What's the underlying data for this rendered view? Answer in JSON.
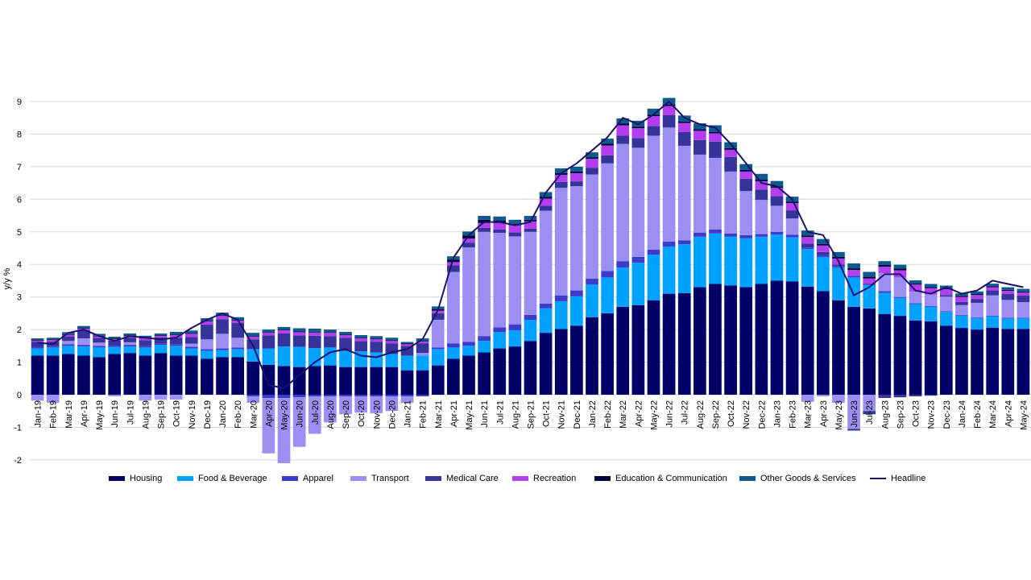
{
  "chart_data": {
    "type": "bar",
    "stacked": true,
    "title": "",
    "xlabel": "",
    "ylabel": "y/y %",
    "ylim": [
      -2,
      9
    ],
    "yticks": [
      -2,
      -1,
      0,
      1,
      2,
      3,
      4,
      5,
      6,
      7,
      8,
      9
    ],
    "grid": true,
    "legend_position": "bottom",
    "categories": [
      "Jan-19",
      "Feb-19",
      "Mar-19",
      "Apr-19",
      "May-19",
      "Jun-19",
      "Jul-19",
      "Aug-19",
      "Sep-19",
      "Oct-19",
      "Nov-19",
      "Dec-19",
      "Jan-20",
      "Feb-20",
      "Mar-20",
      "Apr-20",
      "May-20",
      "Jun-20",
      "Jul-20",
      "Aug-20",
      "Sep-20",
      "Oct-20",
      "Nov-20",
      "Dec-20",
      "Jan-21",
      "Feb-21",
      "Mar-21",
      "Apr-21",
      "May-21",
      "Jun-21",
      "Jul-21",
      "Aug-21",
      "Sep-21",
      "Oct-21",
      "Nov-21",
      "Dec-21",
      "Jan-22",
      "Feb-22",
      "Mar-22",
      "Apr-22",
      "May-22",
      "Jun-22",
      "Jul-22",
      "Aug-22",
      "Sep-22",
      "Oct-22",
      "Nov-22",
      "Dec-22",
      "Jan-23",
      "Feb-23",
      "Mar-23",
      "Apr-23",
      "May-23",
      "Jun-23",
      "Jul-23",
      "Aug-23",
      "Sep-23",
      "Oct-23",
      "Nov-23",
      "Dec-23",
      "Jan-24",
      "Feb-24",
      "Mar-24",
      "Apr-24",
      "May-24"
    ],
    "series": [
      {
        "name": "Housing",
        "color": "#000066",
        "values": [
          1.2,
          1.2,
          1.25,
          1.2,
          1.15,
          1.25,
          1.28,
          1.2,
          1.28,
          1.2,
          1.2,
          1.1,
          1.15,
          1.15,
          1.02,
          0.92,
          0.88,
          0.85,
          0.88,
          0.9,
          0.85,
          0.85,
          0.85,
          0.85,
          0.75,
          0.75,
          0.9,
          1.1,
          1.2,
          1.3,
          1.42,
          1.48,
          1.65,
          1.9,
          2.02,
          2.12,
          2.38,
          2.5,
          2.7,
          2.75,
          2.9,
          3.1,
          3.12,
          3.3,
          3.4,
          3.35,
          3.3,
          3.4,
          3.5,
          3.48,
          3.32,
          3.18,
          2.9,
          2.7,
          2.65,
          2.48,
          2.42,
          2.28,
          2.25,
          2.12,
          2.05,
          2.0,
          2.06,
          2.02,
          2.02
        ]
      },
      {
        "name": "Food & Beverage",
        "color": "#00a2ff",
        "values": [
          0.22,
          0.25,
          0.25,
          0.28,
          0.3,
          0.22,
          0.2,
          0.25,
          0.25,
          0.3,
          0.22,
          0.25,
          0.22,
          0.25,
          0.38,
          0.5,
          0.6,
          0.62,
          0.55,
          0.55,
          0.5,
          0.48,
          0.45,
          0.4,
          0.45,
          0.45,
          0.5,
          0.35,
          0.3,
          0.35,
          0.5,
          0.5,
          0.65,
          0.75,
          0.85,
          0.9,
          1.0,
          1.1,
          1.2,
          1.3,
          1.4,
          1.45,
          1.5,
          1.55,
          1.55,
          1.5,
          1.5,
          1.45,
          1.42,
          1.35,
          1.15,
          1.05,
          1.0,
          0.9,
          0.72,
          0.65,
          0.55,
          0.5,
          0.45,
          0.42,
          0.38,
          0.35,
          0.35,
          0.32,
          0.32
        ]
      },
      {
        "name": "Apparel",
        "color": "#3b3bcc",
        "values": [
          0.05,
          0.05,
          0.05,
          0.05,
          0.05,
          0.05,
          0.05,
          0.05,
          0.05,
          0.05,
          0.05,
          0.05,
          0.05,
          0.05,
          -0.05,
          -0.1,
          -0.1,
          -0.08,
          -0.05,
          -0.05,
          -0.05,
          -0.05,
          -0.05,
          -0.05,
          -0.05,
          -0.05,
          0.05,
          0.12,
          0.12,
          0.15,
          0.15,
          0.18,
          0.15,
          0.15,
          0.18,
          0.18,
          0.18,
          0.2,
          0.2,
          0.18,
          0.15,
          0.15,
          0.12,
          0.12,
          0.12,
          0.1,
          0.1,
          0.08,
          0.08,
          0.08,
          0.05,
          0.05,
          0.05,
          0.05,
          0.05,
          0.05,
          0.03,
          0.03,
          0.02,
          0.02,
          0.02,
          0.02,
          0.02,
          0.02,
          0.02
        ]
      },
      {
        "name": "Transport",
        "color": "#9b8ff2",
        "values": [
          -0.18,
          -0.25,
          0.1,
          0.2,
          0.1,
          -0.05,
          0.08,
          -0.18,
          -0.15,
          -0.15,
          0.1,
          0.3,
          0.45,
          0.3,
          -0.2,
          -1.7,
          -2.0,
          -1.52,
          -1.15,
          -0.8,
          -0.55,
          -0.5,
          -0.52,
          -0.45,
          -0.2,
          0.08,
          0.85,
          2.2,
          2.9,
          3.2,
          2.9,
          2.7,
          2.55,
          2.85,
          3.3,
          3.2,
          3.2,
          3.3,
          3.6,
          3.35,
          3.5,
          3.5,
          2.9,
          2.4,
          2.2,
          1.9,
          1.35,
          1.05,
          0.8,
          0.5,
          -0.22,
          -0.05,
          -0.25,
          -1.05,
          -0.5,
          0.55,
          0.6,
          0.35,
          0.35,
          0.45,
          0.3,
          0.45,
          0.62,
          0.55,
          0.48
        ]
      },
      {
        "name": "Medical Care",
        "color": "#36349a",
        "values": [
          0.15,
          0.13,
          0.14,
          0.25,
          0.14,
          0.14,
          0.14,
          0.17,
          0.18,
          0.2,
          0.2,
          0.45,
          0.45,
          0.45,
          0.3,
          0.4,
          0.4,
          0.35,
          0.38,
          0.35,
          0.4,
          0.32,
          0.32,
          0.32,
          0.3,
          0.3,
          0.2,
          0.2,
          0.15,
          0.12,
          0.1,
          0.12,
          0.1,
          0.15,
          0.18,
          0.15,
          0.2,
          0.25,
          0.25,
          0.3,
          0.3,
          0.38,
          0.42,
          0.45,
          0.5,
          0.45,
          0.38,
          0.32,
          0.3,
          0.25,
          0.12,
          0.1,
          0.05,
          -0.05,
          -0.1,
          -0.1,
          -0.08,
          -0.05,
          -0.03,
          0.05,
          0.1,
          0.12,
          0.15,
          0.18,
          0.2
        ]
      },
      {
        "name": "Recreation",
        "color": "#b23ef0",
        "values": [
          0.04,
          0.05,
          0.05,
          0.05,
          0.05,
          0.05,
          0.05,
          0.06,
          0.05,
          0.08,
          0.1,
          0.1,
          0.1,
          0.08,
          0.08,
          0.08,
          0.1,
          0.1,
          0.1,
          0.1,
          0.08,
          0.08,
          0.08,
          0.08,
          0.05,
          0.05,
          0.08,
          0.1,
          0.12,
          0.15,
          0.2,
          0.22,
          0.22,
          0.22,
          0.22,
          0.25,
          0.28,
          0.3,
          0.32,
          0.3,
          0.3,
          0.28,
          0.28,
          0.28,
          0.25,
          0.22,
          0.22,
          0.25,
          0.25,
          0.22,
          0.2,
          0.2,
          0.18,
          0.18,
          0.15,
          0.2,
          0.22,
          0.22,
          0.2,
          0.18,
          0.15,
          0.12,
          0.1,
          0.1,
          0.1
        ]
      },
      {
        "name": "Education & Communication",
        "color": "#00003a",
        "values": [
          0.02,
          0.02,
          0.02,
          0.02,
          0.02,
          0.02,
          0.02,
          0.02,
          0.02,
          0.02,
          0.02,
          0.02,
          0.02,
          0.02,
          0.02,
          0.02,
          0.02,
          0.02,
          0.02,
          0.02,
          0.02,
          0.02,
          0.02,
          0.02,
          0.02,
          0.02,
          0.05,
          0.08,
          0.1,
          0.1,
          0.08,
          0.05,
          0.05,
          0.05,
          0.05,
          0.05,
          0.05,
          0.06,
          0.05,
          0.05,
          0.05,
          0.05,
          0.05,
          0.05,
          0.05,
          0.05,
          0.05,
          0.05,
          0.05,
          0.05,
          0.05,
          0.05,
          0.05,
          0.05,
          0.05,
          0.05,
          0.05,
          0.03,
          0.03,
          0.03,
          0.03,
          0.03,
          0.03,
          0.03,
          0.03
        ]
      },
      {
        "name": "Other Goods & Services",
        "color": "#0f5a8c",
        "values": [
          0.05,
          0.05,
          0.06,
          0.06,
          0.06,
          0.05,
          0.06,
          0.06,
          0.05,
          0.08,
          0.08,
          0.08,
          0.08,
          0.08,
          0.1,
          0.08,
          0.08,
          0.1,
          0.1,
          0.08,
          0.08,
          0.08,
          0.08,
          0.08,
          0.05,
          0.08,
          0.08,
          0.1,
          0.12,
          0.12,
          0.12,
          0.12,
          0.12,
          0.15,
          0.15,
          0.15,
          0.15,
          0.15,
          0.16,
          0.18,
          0.18,
          0.2,
          0.18,
          0.18,
          0.2,
          0.18,
          0.18,
          0.18,
          0.16,
          0.15,
          0.15,
          0.15,
          0.15,
          0.15,
          0.15,
          0.12,
          0.12,
          0.1,
          0.1,
          0.08,
          0.08,
          0.08,
          0.08,
          0.08,
          0.08
        ]
      },
      {
        "name": "Headline",
        "color": "#1a126e",
        "type": "line",
        "values": [
          1.6,
          1.55,
          1.9,
          2.0,
          1.8,
          1.65,
          1.8,
          1.75,
          1.7,
          1.75,
          2.05,
          2.3,
          2.5,
          2.3,
          1.5,
          0.3,
          0.2,
          0.6,
          1.0,
          1.3,
          1.4,
          1.2,
          1.15,
          1.3,
          1.4,
          1.7,
          2.6,
          4.2,
          4.9,
          5.3,
          5.3,
          5.2,
          5.3,
          6.2,
          6.8,
          7.1,
          7.5,
          7.9,
          8.5,
          8.3,
          8.6,
          9.0,
          8.5,
          8.3,
          8.2,
          7.7,
          7.1,
          6.5,
          6.4,
          6.0,
          5.0,
          4.9,
          4.1,
          3.05,
          3.3,
          3.7,
          3.7,
          3.2,
          3.1,
          3.3,
          3.1,
          3.2,
          3.5,
          3.4,
          3.3
        ]
      }
    ]
  }
}
